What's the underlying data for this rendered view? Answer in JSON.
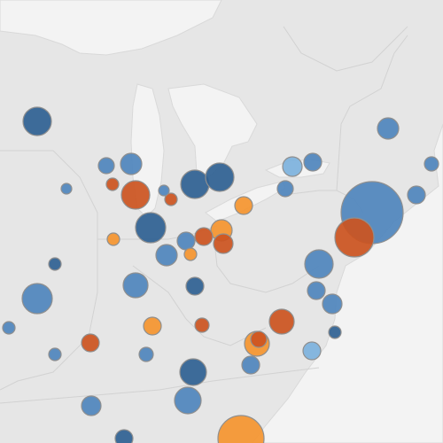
{
  "map": {
    "projection": {
      "lon": [
        -92,
        -67
      ],
      "lat": [
        48,
        35.5
      ]
    },
    "categories": {
      "dark_blue": "#2f6193",
      "blue": "#4f86bd",
      "light_blue": "#7db2dd",
      "dark_orange": "#cc5420",
      "orange": "#f5952f"
    },
    "bubbles": [
      {
        "lon": -89.9,
        "lat": 44.575,
        "value": 256,
        "category": "dark_blue"
      },
      {
        "lon": -70.1,
        "lat": 44.375,
        "value": 144,
        "category": "blue"
      },
      {
        "lon": -84.6,
        "lat": 43.375,
        "value": 144,
        "category": "blue"
      },
      {
        "lon": -86.0,
        "lat": 43.325,
        "value": 81,
        "category": "blue"
      },
      {
        "lon": -84.35,
        "lat": 42.5,
        "value": 256,
        "category": "dark_orange"
      },
      {
        "lon": -81.0,
        "lat": 42.8,
        "value": 256,
        "category": "dark_blue"
      },
      {
        "lon": -79.6,
        "lat": 43.0,
        "value": 256,
        "category": "dark_blue"
      },
      {
        "lon": -75.5,
        "lat": 43.3,
        "value": 121,
        "category": "light_blue"
      },
      {
        "lon": -74.35,
        "lat": 43.425,
        "value": 100,
        "category": "blue"
      },
      {
        "lon": -75.9,
        "lat": 42.675,
        "value": 81,
        "category": "blue"
      },
      {
        "lon": -71.0,
        "lat": 42.0,
        "value": 1225,
        "category": "blue"
      },
      {
        "lon": -72.0,
        "lat": 41.3,
        "value": 484,
        "category": "dark_orange"
      },
      {
        "lon": -83.5,
        "lat": 41.575,
        "value": 289,
        "category": "dark_blue"
      },
      {
        "lon": -79.5,
        "lat": 41.5,
        "value": 144,
        "category": "orange"
      },
      {
        "lon": -80.5,
        "lat": 41.325,
        "value": 100,
        "category": "dark_orange"
      },
      {
        "lon": -79.4,
        "lat": 41.125,
        "value": 121,
        "category": "dark_orange"
      },
      {
        "lon": -81.5,
        "lat": 41.2,
        "value": 100,
        "category": "blue"
      },
      {
        "lon": -82.6,
        "lat": 40.8,
        "value": 144,
        "category": "blue"
      },
      {
        "lon": -74.0,
        "lat": 40.55,
        "value": 256,
        "category": "blue"
      },
      {
        "lon": -89.9,
        "lat": 39.575,
        "value": 289,
        "category": "blue"
      },
      {
        "lon": -84.35,
        "lat": 39.95,
        "value": 196,
        "category": "blue"
      },
      {
        "lon": -81.0,
        "lat": 39.925,
        "value": 100,
        "category": "dark_blue"
      },
      {
        "lon": -76.1,
        "lat": 38.925,
        "value": 196,
        "category": "dark_orange"
      },
      {
        "lon": -73.25,
        "lat": 39.425,
        "value": 121,
        "category": "blue"
      },
      {
        "lon": -74.15,
        "lat": 39.8,
        "value": 100,
        "category": "blue"
      },
      {
        "lon": -83.4,
        "lat": 38.8,
        "value": 100,
        "category": "orange"
      },
      {
        "lon": -86.9,
        "lat": 38.325,
        "value": 100,
        "category": "dark_orange"
      },
      {
        "lon": -80.6,
        "lat": 38.825,
        "value": 64,
        "category": "dark_orange"
      },
      {
        "lon": -77.5,
        "lat": 38.3,
        "value": 196,
        "category": "orange"
      },
      {
        "lon": -77.4,
        "lat": 38.425,
        "value": 81,
        "category": "dark_orange"
      },
      {
        "lon": -74.4,
        "lat": 38.1,
        "value": 100,
        "category": "light_blue"
      },
      {
        "lon": -81.1,
        "lat": 37.5,
        "value": 225,
        "category": "dark_blue"
      },
      {
        "lon": -81.4,
        "lat": 36.7,
        "value": 225,
        "category": "blue"
      },
      {
        "lon": -86.85,
        "lat": 36.55,
        "value": 121,
        "category": "blue"
      },
      {
        "lon": -77.85,
        "lat": 37.7,
        "value": 100,
        "category": "blue"
      },
      {
        "lon": -78.4,
        "lat": 35.625,
        "value": 676,
        "category": "orange"
      },
      {
        "lon": -85.0,
        "lat": 35.625,
        "value": 100,
        "category": "dark_blue"
      },
      {
        "lon": -88.9,
        "lat": 40.55,
        "value": 49,
        "category": "dark_blue"
      },
      {
        "lon": -85.6,
        "lat": 41.25,
        "value": 49,
        "category": "orange"
      },
      {
        "lon": -81.25,
        "lat": 40.825,
        "value": 49,
        "category": "orange"
      },
      {
        "lon": -78.25,
        "lat": 42.2,
        "value": 100,
        "category": "orange"
      },
      {
        "lon": -67.65,
        "lat": 43.375,
        "value": 64,
        "category": "blue"
      },
      {
        "lon": -68.5,
        "lat": 42.5,
        "value": 100,
        "category": "blue"
      },
      {
        "lon": -73.1,
        "lat": 38.625,
        "value": 49,
        "category": "dark_blue"
      },
      {
        "lon": -88.9,
        "lat": 38.0,
        "value": 49,
        "category": "blue"
      },
      {
        "lon": -91.5,
        "lat": 38.75,
        "value": 49,
        "category": "blue"
      },
      {
        "lon": -83.75,
        "lat": 38.0,
        "value": 64,
        "category": "blue"
      },
      {
        "lon": -82.35,
        "lat": 42.375,
        "value": 49,
        "category": "dark_orange"
      },
      {
        "lon": -82.75,
        "lat": 42.625,
        "value": 36,
        "category": "blue"
      },
      {
        "lon": -85.65,
        "lat": 42.8,
        "value": 49,
        "category": "dark_orange"
      },
      {
        "lon": -88.25,
        "lat": 42.675,
        "value": 36,
        "category": "blue"
      }
    ]
  }
}
